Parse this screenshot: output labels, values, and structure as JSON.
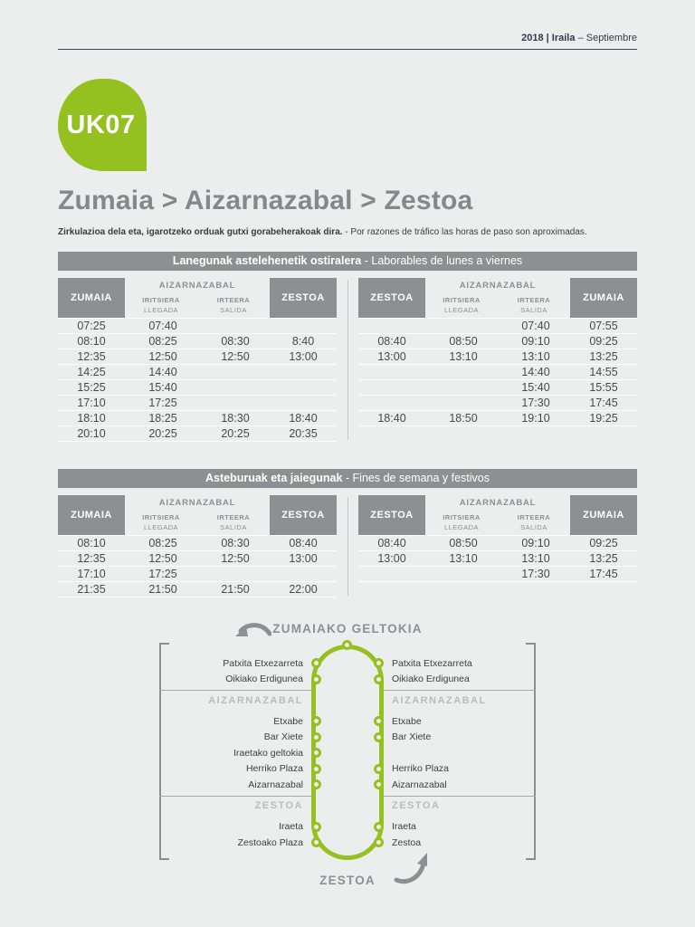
{
  "meta": {
    "date_bold": "2018 | Iraila",
    "date_rest": "– Septiembre"
  },
  "logo": {
    "code": "UK07"
  },
  "title": "Zumaia > Aizarnazabal > Zestoa",
  "note_bold": "Zirkulazioa dela eta, igarotzeko orduak gutxi gorabeherakoak dira.",
  "note_rest": "- Por razones de tráfico las horas de paso son aproximadas.",
  "labels": {
    "zumaia": "ZUMAIA",
    "zestoa": "ZESTOA",
    "aizarnazabal": "AIZARNAZABAL",
    "iritsiera": "IRITSIERA",
    "llegada": "LLEGADA",
    "irteera": "IRTEERA",
    "salida": "SALIDA"
  },
  "sections": [
    {
      "title_bold": "Lanegunak astelehenetik ostiralera",
      "title_rest": "- Laborables de lunes a viernes",
      "left_rows": [
        [
          "07:25",
          "07:40",
          "",
          ""
        ],
        [
          "08:10",
          "08:25",
          "08:30",
          "8:40"
        ],
        [
          "12:35",
          "12:50",
          "12:50",
          "13:00"
        ],
        [
          "14:25",
          "14:40",
          "",
          ""
        ],
        [
          "15:25",
          "15:40",
          "",
          ""
        ],
        [
          "17:10",
          "17:25",
          "",
          ""
        ],
        [
          "18:10",
          "18:25",
          "18:30",
          "18:40"
        ],
        [
          "20:10",
          "20:25",
          "20:25",
          "20:35"
        ]
      ],
      "right_rows": [
        [
          "",
          "",
          "07:40",
          "07:55"
        ],
        [
          "08:40",
          "08:50",
          "09:10",
          "09:25"
        ],
        [
          "13:00",
          "13:10",
          "13:10",
          "13:25"
        ],
        [
          "",
          "",
          "14:40",
          "14:55"
        ],
        [
          "",
          "",
          "15:40",
          "15:55"
        ],
        [
          "",
          "",
          "17:30",
          "17:45"
        ],
        [
          "18:40",
          "18:50",
          "19:10",
          "19:25"
        ]
      ]
    },
    {
      "title_bold": "Asteburuak eta jaiegunak",
      "title_rest": "- Fines de semana y festivos",
      "left_rows": [
        [
          "08:10",
          "08:25",
          "08:30",
          "08:40"
        ],
        [
          "12:35",
          "12:50",
          "12:50",
          "13:00"
        ],
        [
          "17:10",
          "17:25",
          "",
          ""
        ],
        [
          "21:35",
          "21:50",
          "21:50",
          "22:00"
        ]
      ],
      "right_rows": [
        [
          "08:40",
          "08:50",
          "09:10",
          "09:25"
        ],
        [
          "13:00",
          "13:10",
          "13:10",
          "13:25"
        ],
        [
          "",
          "",
          "17:30",
          "17:45"
        ]
      ]
    }
  ],
  "diagram": {
    "top_label": "ZUMAIAKO GELTOKIA",
    "bottom_label": "ZESTOA",
    "rows": [
      {
        "left": "Patxita Etxezarreta",
        "right": "Patxita Etxezarreta"
      },
      {
        "left": "Oikiako Erdigunea",
        "right": "Oikiako Erdigunea"
      },
      {
        "header": "AIZARNAZABAL"
      },
      {
        "left": "Etxabe",
        "right": "Etxabe"
      },
      {
        "left": "Bar Xiete",
        "right": "Bar Xiete"
      },
      {
        "left": "Iraetako geltokia",
        "right": ""
      },
      {
        "left": "Herriko Plaza",
        "right": "Herriko Plaza"
      },
      {
        "left": "Aizarnazabal",
        "right": "Aizarnazabal"
      },
      {
        "header": "ZESTOA"
      },
      {
        "left": "Iraeta",
        "right": "Iraeta"
      },
      {
        "left": "Zestoako Plaza",
        "right": "Zestoa"
      }
    ]
  },
  "colors": {
    "green": "#94c11f",
    "gray": "#8c9093",
    "dark_text": "#48494b",
    "navy_text": "#2d3b4f",
    "background": "#eceded"
  }
}
